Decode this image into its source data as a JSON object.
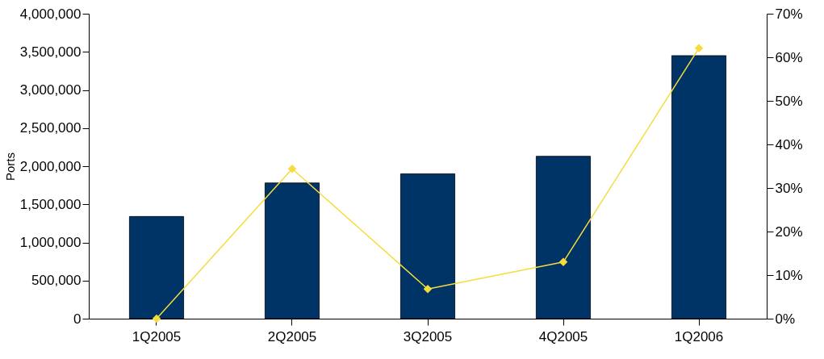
{
  "chart_data": {
    "type": "bar",
    "ylabel": "Ports",
    "categories": [
      "1Q2005",
      "2Q2005",
      "3Q2005",
      "4Q2005",
      "1Q2006"
    ],
    "series": [
      {
        "color": "#003366",
        "values": [
          1340000,
          1780000,
          1900000,
          2130000,
          3450000
        ]
      },
      {
        "type": "line",
        "axis": "y2",
        "color": "#f5dc3c",
        "marker": "diamond",
        "values": [
          0,
          34.4,
          6.8,
          13,
          62.1
        ]
      }
    ],
    "ylim": [
      0,
      4000000
    ],
    "yticks": [
      {
        "value": 0,
        "label": "0"
      },
      {
        "value": 500000,
        "label": "500,000"
      },
      {
        "value": 1000000,
        "label": "1,000,000"
      },
      {
        "value": 1500000,
        "label": "1,500,000"
      },
      {
        "value": 2000000,
        "label": "2,000,000"
      },
      {
        "value": 2500000,
        "label": "2,500,000"
      },
      {
        "value": 3000000,
        "label": "3,000,000"
      },
      {
        "value": 3500000,
        "label": "3,500,000"
      },
      {
        "value": 4000000,
        "label": "4,000,000"
      }
    ],
    "y2lim": [
      0,
      70
    ],
    "y2ticks": [
      {
        "value": 0,
        "label": "0%"
      },
      {
        "value": 10,
        "label": "10%"
      },
      {
        "value": 20,
        "label": "20%"
      },
      {
        "value": 30,
        "label": "30%"
      },
      {
        "value": 40,
        "label": "40%"
      },
      {
        "value": 50,
        "label": "50%"
      },
      {
        "value": 60,
        "label": "60%"
      },
      {
        "value": 70,
        "label": "70%"
      }
    ],
    "grid": false
  }
}
